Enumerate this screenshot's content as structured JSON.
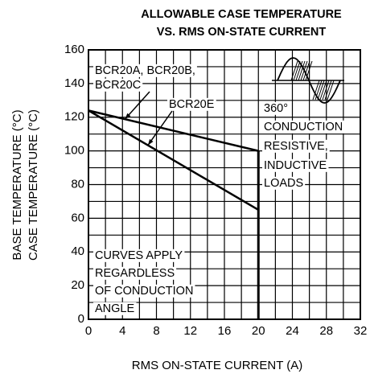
{
  "chart_data": {
    "type": "line",
    "title": [
      "ALLOWABLE CASE TEMPERATURE",
      "VS. RMS ON-STATE CURRENT"
    ],
    "x_label": "RMS ON-STATE CURRENT  (A)",
    "y_label": [
      "BASE TEMPERATURE  (°C)",
      "CASE TEMPERATURE  (°C)"
    ],
    "x": [
      0,
      20
    ],
    "series": [
      {
        "name": "BCR20A, BCR20B, BCR20C",
        "color": "#000000",
        "values": [
          124,
          100
        ]
      },
      {
        "name": "BCR20E",
        "color": "#000000",
        "values": [
          124,
          65
        ]
      }
    ],
    "annotations": [
      "BCR20A, BCR20B,",
      "BCR20C",
      "BCR20E",
      "360°",
      "CONDUCTION",
      "RESISTIVE,",
      "INDUCTIVE",
      "LOADS",
      "CURVES APPLY",
      "REGARDLESS",
      "OF CONDUCTION",
      "ANGLE"
    ],
    "xlim": [
      0,
      32
    ],
    "ylim": [
      0,
      160
    ],
    "xticks": [
      0,
      4,
      8,
      12,
      16,
      20,
      24,
      28,
      32
    ],
    "yticks": [
      0,
      20,
      40,
      60,
      80,
      100,
      120,
      140,
      160
    ],
    "grid": true,
    "legend": false
  }
}
